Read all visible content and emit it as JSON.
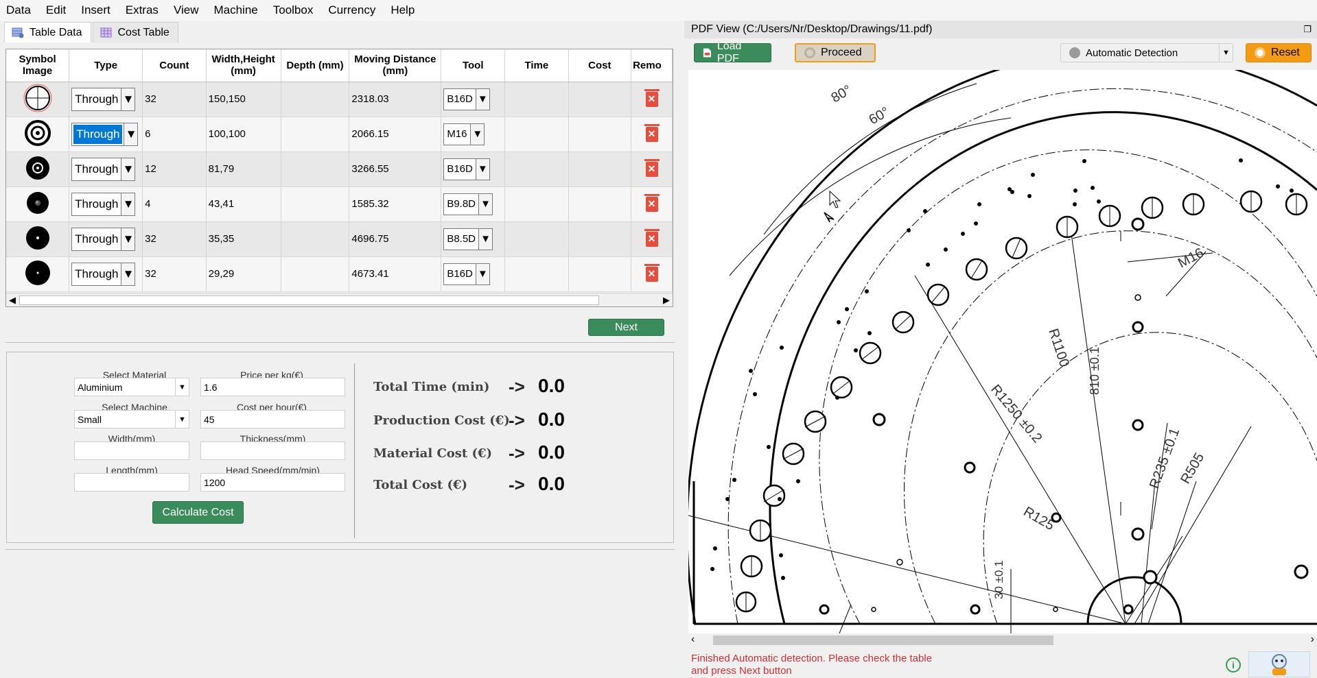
{
  "menu": [
    "Data",
    "Edit",
    "Insert",
    "Extras",
    "View",
    "Machine",
    "Toolbox",
    "Currency",
    "Help"
  ],
  "tabs": [
    {
      "label": "Table Data",
      "icon": "table-data-icon",
      "active": true
    },
    {
      "label": "Cost Table",
      "icon": "cost-table-icon",
      "active": false
    }
  ],
  "table": {
    "headers": {
      "symbol_1": "Symbol",
      "symbol_2": "Image",
      "type": "Type",
      "count": "Count",
      "wh_1": "Width,Height",
      "wh_2": "(mm)",
      "depth": "Depth (mm)",
      "md_1": "Moving Distance",
      "md_2": "(mm)",
      "tool": "Tool",
      "time": "Time",
      "cost": "Cost",
      "remove": "Remo"
    },
    "rows": [
      {
        "type": "Through",
        "count": "32",
        "wh": "150,150",
        "depth": "",
        "moving": "2318.03",
        "tool": "B16D",
        "time": "",
        "cost": ""
      },
      {
        "type": "Through",
        "count": "6",
        "wh": "100,100",
        "depth": "",
        "moving": "2066.15",
        "tool": "M16",
        "time": "",
        "cost": ""
      },
      {
        "type": "Through",
        "count": "12",
        "wh": "81,79",
        "depth": "",
        "moving": "3266.55",
        "tool": "B16D",
        "time": "",
        "cost": ""
      },
      {
        "type": "Through",
        "count": "4",
        "wh": "43,41",
        "depth": "",
        "moving": "1585.32",
        "tool": "B9.8D",
        "time": "",
        "cost": ""
      },
      {
        "type": "Through",
        "count": "32",
        "wh": "35,35",
        "depth": "",
        "moving": "4696.75",
        "tool": "B8.5D",
        "time": "",
        "cost": ""
      },
      {
        "type": "Through",
        "count": "32",
        "wh": "29,29",
        "depth": "",
        "moving": "4673.41",
        "tool": "B16D",
        "time": "",
        "cost": ""
      }
    ]
  },
  "next_label": "Next",
  "cost": {
    "select_material_label": "Select Material",
    "material_value": "Aluminium",
    "price_label": "Price per kg(€)",
    "price_value": "1.6",
    "select_machine_label": "Select Machine",
    "machine_value": "Small",
    "cost_hour_label": "Cost per hour(€)",
    "cost_hour_value": "45",
    "width_label": "Width(mm)",
    "width_value": "",
    "thickness_label": "Thickness(mm)",
    "thickness_value": "",
    "length_label": "Length(mm)",
    "length_value": "",
    "head_speed_label": "Head Speed(mm/min)",
    "head_speed_value": "1200",
    "calc_label": "Calculate Cost",
    "results": [
      {
        "label": "Total Time (min)",
        "arrow": "->",
        "value": "0.0"
      },
      {
        "label": "Production Cost (€)",
        "arrow": "->",
        "value": "0.0"
      },
      {
        "label": "Material Cost (€)",
        "arrow": "->",
        "value": "0.0"
      },
      {
        "label": "Total Cost (€)",
        "arrow": "->",
        "value": "0.0"
      }
    ]
  },
  "pdf": {
    "title": "PDF View (C:/Users/Nr/Desktop/Drawings/11.pdf)",
    "load_label": "Load PDF",
    "proceed_label": "Proceed",
    "detection_value": "Automatic Detection",
    "reset_label": "Reset",
    "status_line1": "Finished Automatic detection. Please check the table",
    "status_line2": "and press Next button",
    "drawing_labels": {
      "a80": "80°",
      "a60": "60°",
      "m16": "M16",
      "r1100": "R1100",
      "d810": "810 ±0.1",
      "r1250": "R1250 ±0.2",
      "r235": "R235 ±0.1",
      "r505": "R505",
      "r125": "R125",
      "d30": "30 ±0.1"
    }
  },
  "colors": {
    "accent_green": "#3a8c5c",
    "reset_orange": "#f39c12",
    "status_red": "#d32f2f",
    "delete_red": "#e74c3c",
    "select_blue": "#0078d7"
  }
}
